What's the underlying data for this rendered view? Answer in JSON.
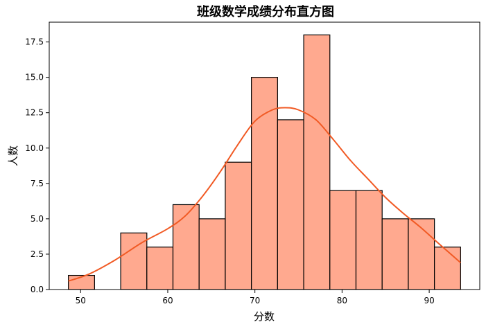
{
  "chart_data": {
    "type": "bar",
    "subtype": "histogram-with-kde",
    "title": "班级数学成绩分布直方图",
    "xlabel": "分数",
    "ylabel": "人数",
    "bin_edges": [
      48.6,
      51.6,
      54.6,
      57.6,
      60.6,
      63.6,
      66.6,
      69.6,
      72.6,
      75.6,
      78.6,
      81.6,
      84.6,
      87.6,
      90.6,
      93.6
    ],
    "values": [
      1,
      0,
      4,
      3,
      6,
      5,
      9,
      15,
      12,
      18,
      7,
      7,
      5,
      5,
      3
    ],
    "xlim": [
      46.4,
      95.8
    ],
    "ylim": [
      0,
      18.9
    ],
    "xticks": [
      50,
      60,
      70,
      80,
      90
    ],
    "yticks": [
      0.0,
      2.5,
      5.0,
      7.5,
      10.0,
      12.5,
      15.0,
      17.5
    ],
    "ytick_labels": [
      "0.0",
      "2.5",
      "5.0",
      "7.5",
      "10.0",
      "12.5",
      "15.0",
      "17.5"
    ],
    "kde": {
      "x": [
        48.6,
        51,
        54,
        57,
        60,
        62,
        64,
        66,
        68,
        70,
        72,
        73.5,
        75,
        77,
        79,
        81,
        83,
        85,
        87,
        89,
        91,
        93.6
      ],
      "y": [
        0.6,
        1.1,
        2.1,
        3.3,
        4.3,
        5.2,
        6.6,
        8.3,
        10.2,
        11.9,
        12.7,
        12.85,
        12.7,
        12.0,
        10.6,
        9.1,
        7.8,
        6.5,
        5.4,
        4.4,
        3.3,
        1.9
      ]
    },
    "bar_color": "#ffa98f",
    "line_color": "#f15a24",
    "grid": false,
    "legend": "none"
  }
}
